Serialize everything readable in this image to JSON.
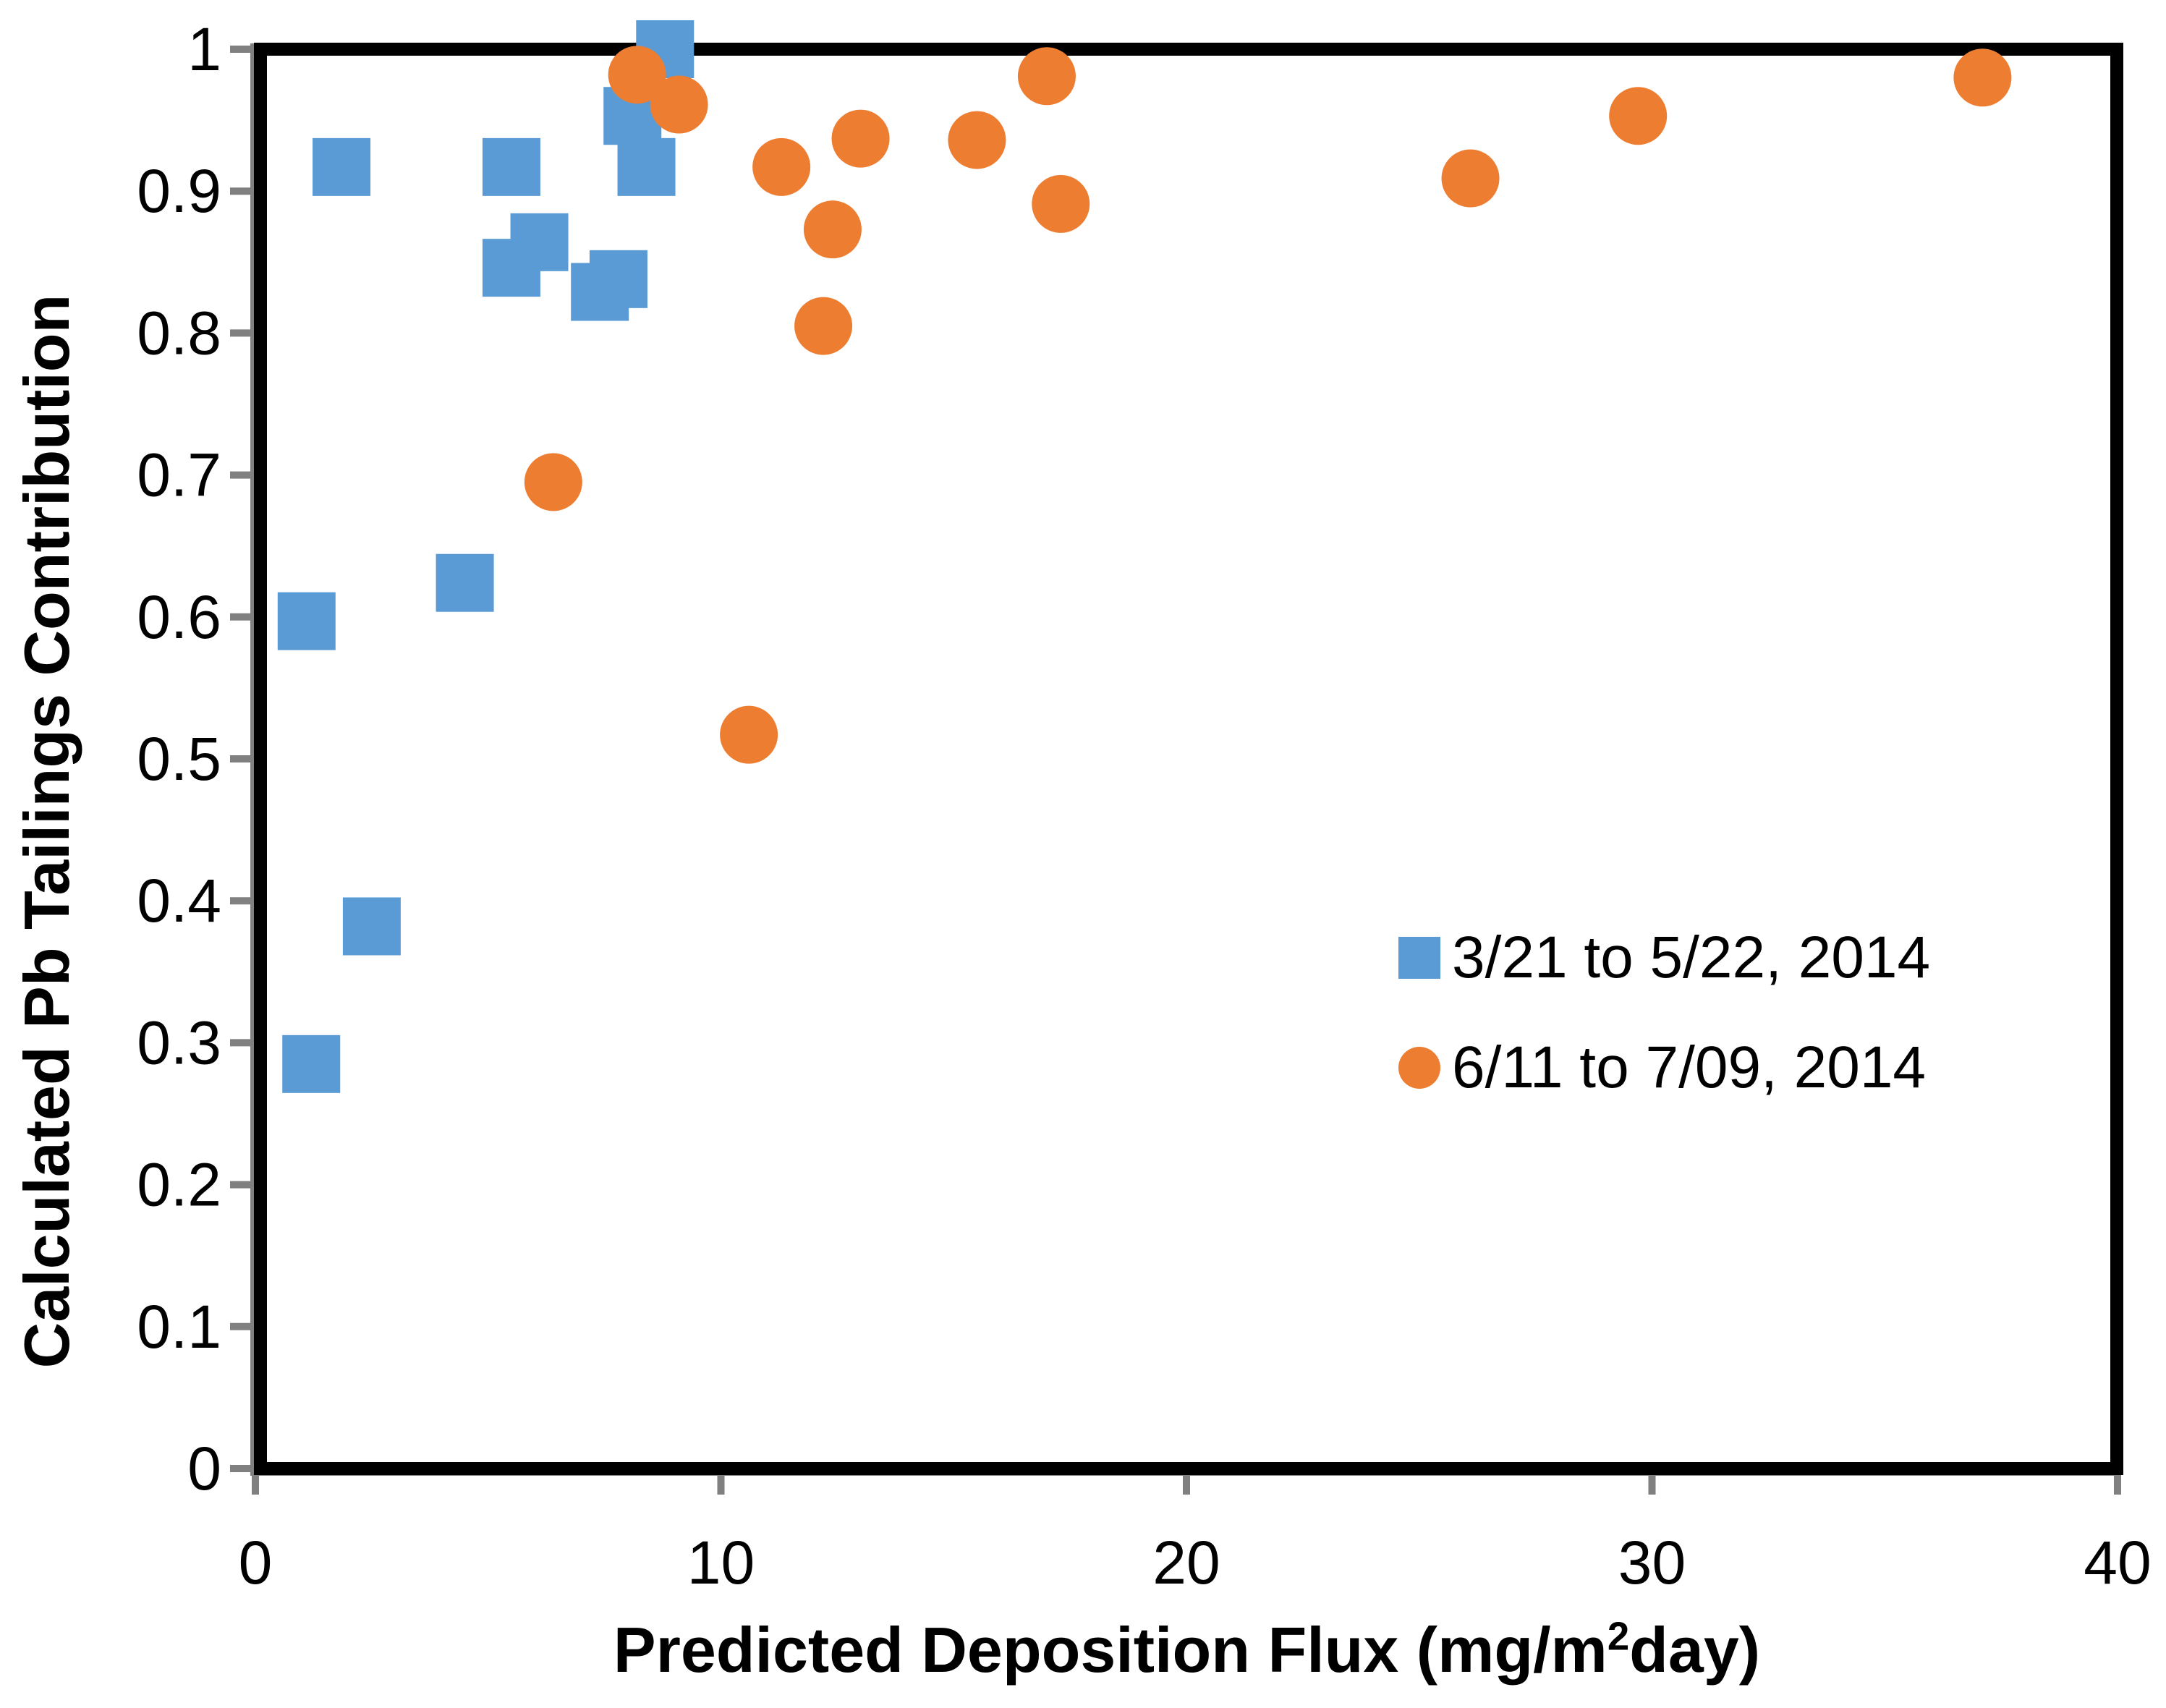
{
  "figure": {
    "background_color": "#ffffff",
    "border_color": "#000000",
    "axis_color": "#808080",
    "text_color": "#000000"
  },
  "chart_data": {
    "type": "scatter",
    "title": "",
    "xlabel_parts": {
      "prefix": "Predicted Deposition Flux (mg/m",
      "sup": "2",
      "suffix": "day)"
    },
    "ylabel": "Calculated Pb Tailings Contribution",
    "xlim": [
      0,
      40
    ],
    "ylim": [
      0,
      1
    ],
    "x_ticks": [
      0,
      10,
      20,
      30,
      40
    ],
    "x_tick_labels": [
      "0",
      "10",
      "20",
      "30",
      "40"
    ],
    "y_ticks": [
      0,
      0.1,
      0.2,
      0.3,
      0.4,
      0.5,
      0.6,
      0.7,
      0.8,
      0.9,
      1
    ],
    "y_tick_labels": [
      "0",
      "0.1",
      "0.2",
      "0.3",
      "0.4",
      "0.5",
      "0.6",
      "0.7",
      "0.8",
      "0.9",
      "1"
    ],
    "grid": false,
    "legend_position": "inside-lower-right",
    "series": [
      {
        "name": "3/21 to 5/22, 2014",
        "marker": "square",
        "color": "#5B9BD5",
        "points": [
          [
            1.85,
            0.917
          ],
          [
            5.5,
            0.917
          ],
          [
            8.4,
            0.917
          ],
          [
            8.1,
            0.953
          ],
          [
            8.8,
            1.0
          ],
          [
            6.1,
            0.864
          ],
          [
            5.5,
            0.846
          ],
          [
            7.8,
            0.838
          ],
          [
            7.4,
            0.829
          ],
          [
            1.1,
            0.597
          ],
          [
            4.5,
            0.624
          ],
          [
            2.5,
            0.382
          ],
          [
            1.2,
            0.285
          ]
        ]
      },
      {
        "name": "6/11 to 7/09, 2014",
        "marker": "circle",
        "color": "#ED7D31",
        "points": [
          [
            8.2,
            0.982
          ],
          [
            9.1,
            0.961
          ],
          [
            11.3,
            0.917
          ],
          [
            13.0,
            0.937
          ],
          [
            15.5,
            0.936
          ],
          [
            12.4,
            0.873
          ],
          [
            12.2,
            0.805
          ],
          [
            6.4,
            0.695
          ],
          [
            10.6,
            0.517
          ],
          [
            17.0,
            0.981
          ],
          [
            17.3,
            0.891
          ],
          [
            26.1,
            0.909
          ],
          [
            29.7,
            0.953
          ],
          [
            37.1,
            0.98
          ]
        ]
      }
    ]
  }
}
